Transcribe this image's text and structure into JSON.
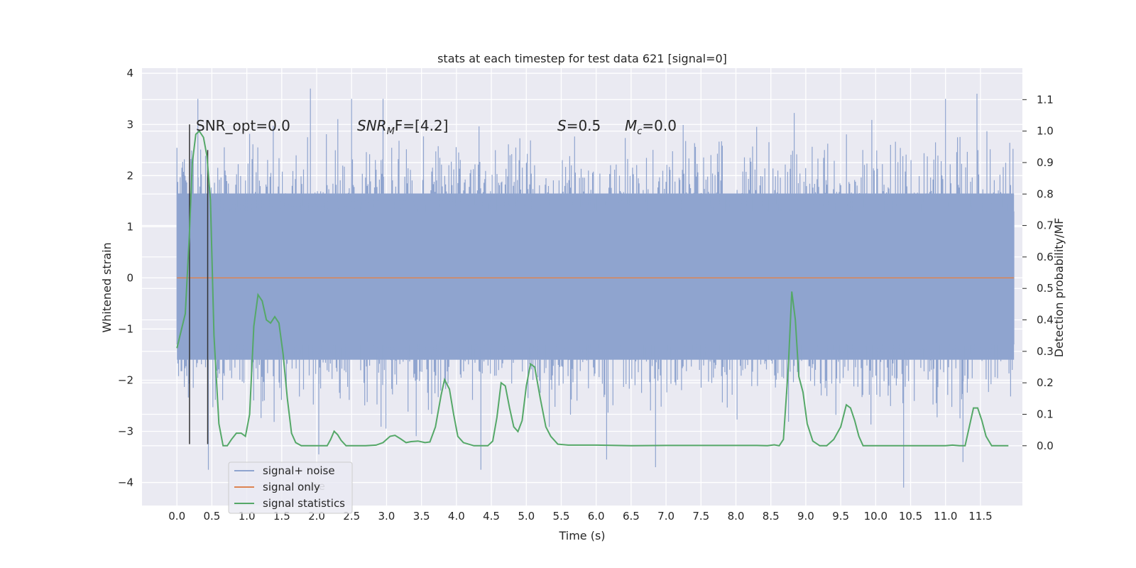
{
  "chart_data": {
    "type": "line",
    "title": "stats at each timestep for test data 621 [signal=0]",
    "xlabel": "Time (s)",
    "ylabel": "Whitened strain",
    "y2label": "Detection probability/MF",
    "xlim": [
      -0.5,
      12.1
    ],
    "ylim": [
      -4.45,
      4.1
    ],
    "y2lim": [
      -0.19,
      1.2
    ],
    "x_ticks": [
      "0.0",
      "0.5",
      "1.0",
      "1.5",
      "2.0",
      "2.5",
      "3.0",
      "3.5",
      "4.0",
      "4.5",
      "5.0",
      "5.5",
      "6.0",
      "6.5",
      "7.0",
      "7.5",
      "8.0",
      "8.5",
      "9.0",
      "9.5",
      "10.0",
      "10.5",
      "11.0",
      "11.5"
    ],
    "y_ticks": [
      4,
      3,
      2,
      1,
      0,
      -1,
      -2,
      -3,
      -4
    ],
    "y2_ticks": [
      "1.1",
      "1.0",
      "0.9",
      "0.8",
      "0.7",
      "0.6",
      "0.5",
      "0.4",
      "0.3",
      "0.2",
      "0.1",
      "0.0"
    ],
    "grid": true,
    "legend_position": "lower-left",
    "annotations": {
      "snr_opt": "SNR_opt=0.0",
      "snr_mf_sym": "SNR",
      "snr_mf_sub": "M",
      "snr_mf_rest": "F=[4.2]",
      "s_sym": "S",
      "s_rest": "=0.5",
      "mc_sym": "M",
      "mc_sub": "c",
      "mc_rest": "=0.0"
    },
    "series": [
      {
        "name": "signal+ noise",
        "color": "#8fa4cf",
        "x_range": [
          0.0,
          11.98
        ],
        "band_core": [
          -1.6,
          1.65
        ],
        "peaks": [
          [
            0.3,
            3.5
          ],
          [
            1.91,
            3.7
          ],
          [
            2.5,
            3.5
          ],
          [
            2.95,
            3.5
          ],
          [
            11.0,
            3.5
          ],
          [
            11.45,
            3.6
          ],
          [
            10.4,
            -4.1
          ],
          [
            0.45,
            -3.75
          ],
          [
            4.35,
            -3.75
          ],
          [
            6.85,
            -3.7
          ],
          [
            11.25,
            -3.6
          ],
          [
            6.15,
            -3.55
          ],
          [
            2.03,
            -3.45
          ]
        ]
      },
      {
        "name": "signal only",
        "color": "#dd8452",
        "values_constant": 0.0
      },
      {
        "name": "signal statistics",
        "color": "#55a868",
        "x": [
          0.0,
          0.12,
          0.18,
          0.22,
          0.27,
          0.32,
          0.38,
          0.43,
          0.48,
          0.53,
          0.6,
          0.66,
          0.72,
          0.78,
          0.85,
          0.92,
          0.98,
          1.04,
          1.1,
          1.16,
          1.22,
          1.28,
          1.34,
          1.4,
          1.46,
          1.52,
          1.58,
          1.64,
          1.7,
          1.78,
          1.9,
          2.05,
          2.15,
          2.2,
          2.25,
          2.3,
          2.35,
          2.42,
          2.55,
          2.7,
          2.85,
          2.95,
          3.05,
          3.12,
          3.2,
          3.28,
          3.35,
          3.45,
          3.55,
          3.62,
          3.7,
          3.78,
          3.83,
          3.9,
          3.96,
          4.02,
          4.1,
          4.25,
          4.35,
          4.45,
          4.52,
          4.58,
          4.64,
          4.7,
          4.76,
          4.82,
          4.88,
          4.94,
          5.0,
          5.06,
          5.12,
          5.2,
          5.28,
          5.35,
          5.45,
          5.6,
          5.8,
          6.0,
          6.5,
          7.0,
          7.5,
          8.0,
          8.3,
          8.45,
          8.55,
          8.62,
          8.68,
          8.75,
          8.8,
          8.85,
          8.9,
          8.96,
          9.02,
          9.1,
          9.2,
          9.3,
          9.4,
          9.5,
          9.58,
          9.64,
          9.7,
          9.76,
          9.82,
          9.9,
          10.0,
          10.2,
          10.5,
          10.8,
          11.0,
          11.1,
          11.2,
          11.28,
          11.34,
          11.4,
          11.46,
          11.52,
          11.58,
          11.66,
          11.75,
          11.9
        ],
        "values": [
          0.31,
          0.42,
          0.68,
          0.9,
          0.99,
          1.0,
          0.98,
          0.92,
          0.78,
          0.35,
          0.07,
          0.0,
          0.0,
          0.02,
          0.04,
          0.04,
          0.03,
          0.1,
          0.38,
          0.48,
          0.46,
          0.4,
          0.39,
          0.41,
          0.39,
          0.29,
          0.15,
          0.04,
          0.01,
          0.0,
          0.0,
          0.0,
          0.0,
          0.02,
          0.046,
          0.035,
          0.017,
          0.0,
          0.0,
          0.0,
          0.002,
          0.01,
          0.03,
          0.033,
          0.022,
          0.01,
          0.013,
          0.015,
          0.01,
          0.012,
          0.06,
          0.16,
          0.21,
          0.18,
          0.1,
          0.03,
          0.01,
          0.0,
          0.0,
          0.0,
          0.015,
          0.09,
          0.2,
          0.19,
          0.12,
          0.06,
          0.045,
          0.08,
          0.19,
          0.26,
          0.25,
          0.15,
          0.06,
          0.03,
          0.005,
          0.002,
          0.002,
          0.002,
          0.0,
          0.001,
          0.001,
          0.001,
          0.001,
          0.0,
          0.003,
          0.0,
          0.02,
          0.25,
          0.49,
          0.4,
          0.22,
          0.17,
          0.07,
          0.015,
          0.0,
          0.0,
          0.02,
          0.06,
          0.13,
          0.12,
          0.08,
          0.03,
          0.0,
          0.0,
          0.0,
          0.0,
          0.0,
          0.0,
          0.0,
          0.002,
          0.0,
          0.0,
          0.06,
          0.12,
          0.12,
          0.08,
          0.03,
          0.0,
          0.0,
          0.0
        ]
      }
    ],
    "vertical_markers": [
      {
        "x": 0.18,
        "from": -3.25,
        "to": 3.0,
        "color": "#333333"
      },
      {
        "x": 0.44,
        "from": -3.25,
        "to": 2.5,
        "color": "#333333"
      }
    ],
    "legend_overlap_text": "noise"
  }
}
